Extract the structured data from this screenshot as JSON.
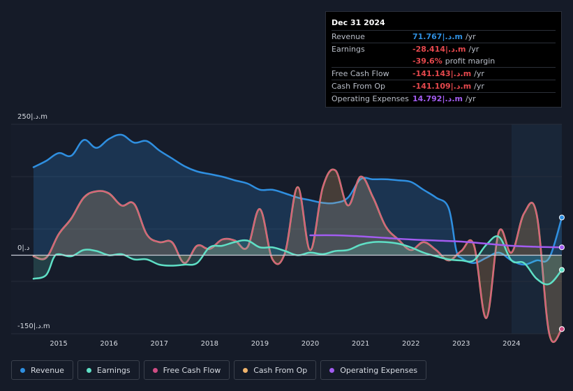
{
  "tooltip": {
    "date": "Dec 31 2024",
    "rows": [
      {
        "label": "Revenue",
        "value": "71.767|.د.m",
        "unit": "/yr",
        "color": "#2f8fe0"
      },
      {
        "label": "Earnings",
        "value": "-28.414|.د.m",
        "unit": "/yr",
        "color": "#e5484d"
      },
      {
        "label": "",
        "value": "-39.6%",
        "unit": "profit margin",
        "color": "#e5484d"
      },
      {
        "label": "Free Cash Flow",
        "value": "-141.143|.د.m",
        "unit": "/yr",
        "color": "#e5484d"
      },
      {
        "label": "Cash From Op",
        "value": "-141.109|.د.m",
        "unit": "/yr",
        "color": "#e5484d"
      },
      {
        "label": "Operating Expenses",
        "value": "14.792|.د.m",
        "unit": "/yr",
        "color": "#a25cf0"
      }
    ]
  },
  "colors": {
    "revenue": "#2f8fe0",
    "earnings": "#5fe0c6",
    "fcf": "#d04d84",
    "cfo": "#f0b46c",
    "opex": "#a25cf0",
    "negative": "#e5484d"
  },
  "chart_data": {
    "type": "line",
    "title": "",
    "y_top_label": "250|.د.m",
    "y_zero_label": "0|.د",
    "y_bottom_label": "-150|.د.m",
    "ylim": [
      -150,
      250
    ],
    "xlim": [
      2014.5,
      2025.0
    ],
    "x_ticks": [
      "2015",
      "2016",
      "2017",
      "2018",
      "2019",
      "2020",
      "2021",
      "2022",
      "2023",
      "2024"
    ],
    "forecast_start": 2024.0,
    "series": [
      {
        "name": "Revenue",
        "key": "revenue",
        "x": [
          2014.5,
          2014.75,
          2015.0,
          2015.25,
          2015.5,
          2015.75,
          2016.0,
          2016.25,
          2016.5,
          2016.75,
          2017.0,
          2017.25,
          2017.5,
          2017.75,
          2018.0,
          2018.25,
          2018.5,
          2018.75,
          2019.0,
          2019.25,
          2019.5,
          2019.75,
          2020.0,
          2020.25,
          2020.5,
          2020.75,
          2021.0,
          2021.25,
          2021.5,
          2021.75,
          2022.0,
          2022.25,
          2022.5,
          2022.75,
          2022.9,
          2023.0,
          2023.25,
          2023.5,
          2023.75,
          2024.0,
          2024.25,
          2024.5,
          2024.75,
          2025.0
        ],
        "values": [
          168,
          180,
          195,
          190,
          220,
          205,
          222,
          230,
          215,
          218,
          200,
          185,
          170,
          160,
          155,
          150,
          143,
          137,
          125,
          125,
          118,
          110,
          105,
          100,
          100,
          110,
          145,
          145,
          145,
          143,
          140,
          125,
          110,
          90,
          10,
          -5,
          -15,
          -5,
          5,
          -10,
          -18,
          -10,
          -5,
          72
        ]
      },
      {
        "name": "Earnings",
        "key": "earnings",
        "x": [
          2014.5,
          2014.75,
          2014.9,
          2015.0,
          2015.25,
          2015.5,
          2015.75,
          2016.0,
          2016.25,
          2016.5,
          2016.75,
          2017.0,
          2017.25,
          2017.5,
          2017.75,
          2018.0,
          2018.25,
          2018.5,
          2018.75,
          2019.0,
          2019.25,
          2019.5,
          2019.75,
          2020.0,
          2020.25,
          2020.5,
          2020.75,
          2021.0,
          2021.25,
          2021.5,
          2021.75,
          2022.0,
          2022.25,
          2022.5,
          2022.75,
          2023.0,
          2023.25,
          2023.5,
          2023.75,
          2024.0,
          2024.25,
          2024.5,
          2024.75,
          2025.0
        ],
        "values": [
          -45,
          -38,
          -5,
          2,
          -2,
          10,
          8,
          0,
          2,
          -8,
          -8,
          -18,
          -20,
          -18,
          -15,
          15,
          18,
          25,
          28,
          15,
          15,
          8,
          0,
          5,
          2,
          8,
          10,
          20,
          25,
          25,
          22,
          15,
          5,
          -2,
          -8,
          -10,
          -10,
          20,
          35,
          -10,
          -15,
          -45,
          -55,
          -28
        ]
      },
      {
        "name": "Free Cash Flow",
        "key": "fcf",
        "x": [
          2014.5,
          2014.75,
          2015.0,
          2015.25,
          2015.5,
          2015.75,
          2016.0,
          2016.25,
          2016.5,
          2016.75,
          2017.0,
          2017.25,
          2017.5,
          2017.75,
          2018.0,
          2018.25,
          2018.5,
          2018.75,
          2019.0,
          2019.25,
          2019.5,
          2019.75,
          2020.0,
          2020.25,
          2020.5,
          2020.75,
          2021.0,
          2021.25,
          2021.5,
          2021.75,
          2022.0,
          2022.25,
          2022.5,
          2022.75,
          2023.0,
          2023.25,
          2023.5,
          2023.75,
          2024.0,
          2024.25,
          2024.5,
          2024.75,
          2025.0
        ],
        "values": [
          -2,
          -5,
          40,
          70,
          110,
          122,
          118,
          95,
          98,
          40,
          25,
          25,
          -15,
          18,
          12,
          30,
          28,
          15,
          88,
          -8,
          5,
          130,
          10,
          130,
          162,
          95,
          150,
          110,
          55,
          30,
          10,
          25,
          10,
          -10,
          8,
          20,
          -120,
          45,
          5,
          80,
          78,
          -150,
          -141
        ]
      },
      {
        "name": "Cash From Op",
        "key": "cfo",
        "x": [
          2014.5,
          2014.75,
          2015.0,
          2015.25,
          2015.5,
          2015.75,
          2016.0,
          2016.25,
          2016.5,
          2016.75,
          2017.0,
          2017.25,
          2017.5,
          2017.75,
          2018.0,
          2018.25,
          2018.5,
          2018.75,
          2019.0,
          2019.25,
          2019.5,
          2019.75,
          2020.0,
          2020.25,
          2020.5,
          2020.75,
          2021.0,
          2021.25,
          2021.5,
          2021.75,
          2022.0,
          2022.25,
          2022.5,
          2022.75,
          2023.0,
          2023.25,
          2023.5,
          2023.75,
          2024.0,
          2024.25,
          2024.5,
          2024.75,
          2025.0
        ],
        "values": [
          -2,
          -5,
          40,
          70,
          110,
          122,
          118,
          95,
          98,
          40,
          25,
          25,
          -15,
          18,
          12,
          30,
          28,
          15,
          88,
          -8,
          5,
          130,
          10,
          130,
          162,
          95,
          150,
          110,
          55,
          30,
          10,
          25,
          10,
          -10,
          8,
          20,
          -120,
          45,
          5,
          80,
          78,
          -150,
          -141
        ]
      },
      {
        "name": "Operating Expenses",
        "key": "opex",
        "x": [
          2020.0,
          2020.5,
          2021.0,
          2021.5,
          2022.0,
          2022.5,
          2023.0,
          2023.5,
          2024.0,
          2024.5,
          2025.0
        ],
        "values": [
          38,
          38,
          36,
          33,
          30,
          28,
          26,
          22,
          18,
          16,
          15
        ]
      }
    ]
  },
  "legend": [
    {
      "label": "Revenue",
      "key": "revenue"
    },
    {
      "label": "Earnings",
      "key": "earnings"
    },
    {
      "label": "Free Cash Flow",
      "key": "fcf"
    },
    {
      "label": "Cash From Op",
      "key": "cfo"
    },
    {
      "label": "Operating Expenses",
      "key": "opex"
    }
  ]
}
